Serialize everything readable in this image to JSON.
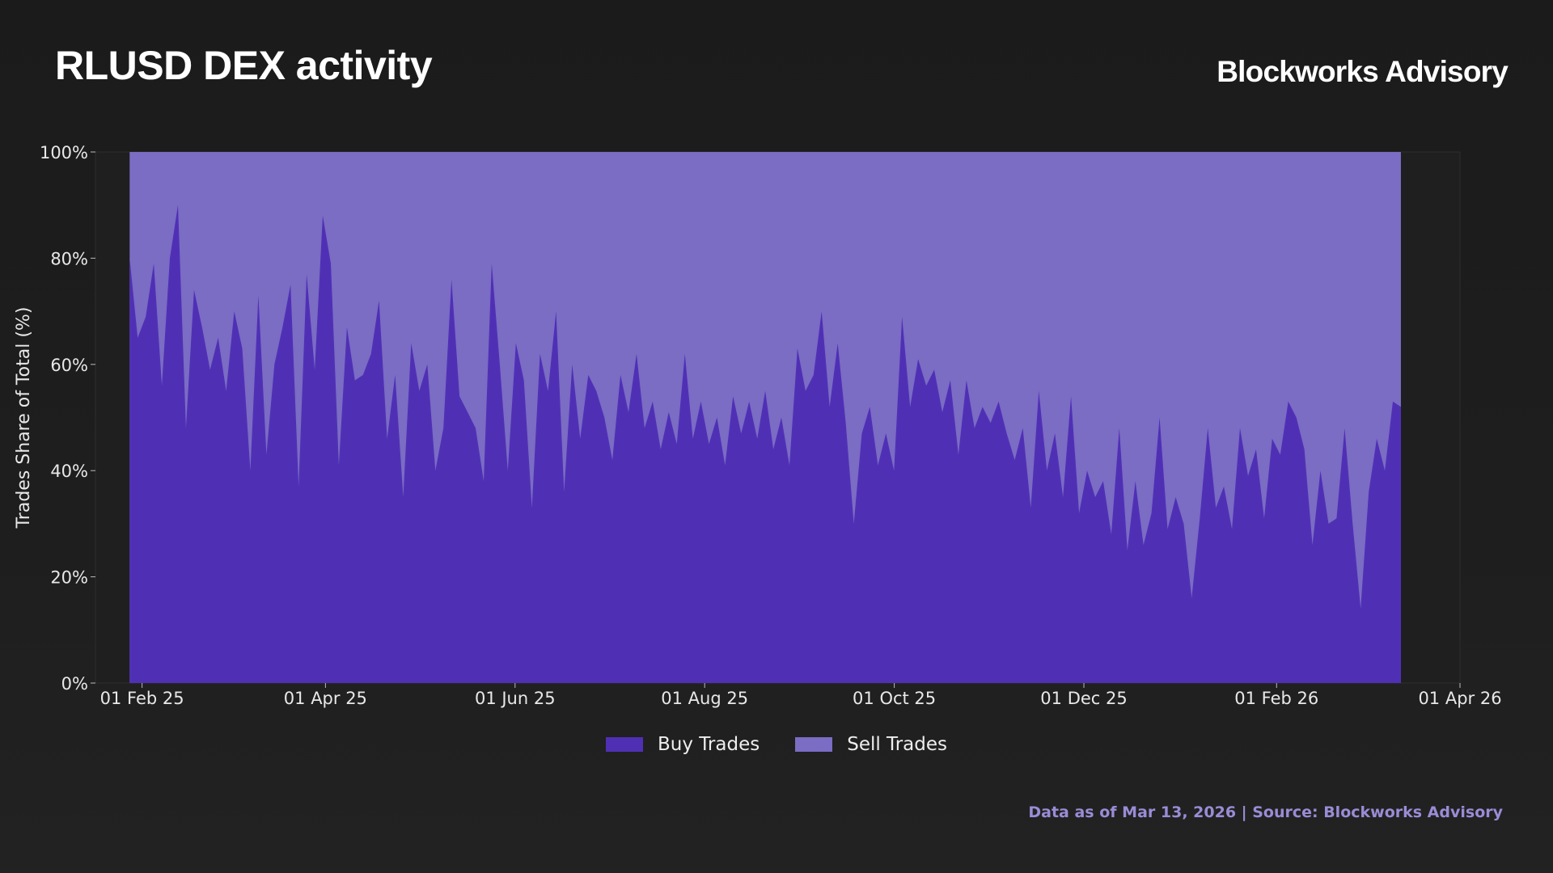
{
  "header": {
    "title": "RLUSD DEX activity",
    "brand": "Blockworks Advisory"
  },
  "footer": {
    "note": "Data as of Mar 13, 2026 | Source: Blockworks Advisory"
  },
  "colors": {
    "buy": "#4f30b5",
    "sell": "#7b6cc4",
    "background": "#1c1c1c",
    "plot_background": "#1f1f1f",
    "axis_text": "#e8e8e8"
  },
  "chart_data": {
    "type": "area",
    "stacked": true,
    "normalized": true,
    "title": "RLUSD DEX activity",
    "xlabel": "",
    "ylabel": "Trades Share of Total (%)",
    "ylim": [
      0,
      100
    ],
    "xlim": [
      "2025-01-17",
      "2026-04-01"
    ],
    "x_start": "2025-01-28",
    "x_end": "2026-03-13",
    "x_ticks": [
      "01 Feb 25",
      "01 Apr 25",
      "01 Jun 25",
      "01 Aug 25",
      "01 Oct 25",
      "01 Dec 25",
      "01 Feb 26",
      "01 Apr 26"
    ],
    "y_ticks": [
      "0%",
      "20%",
      "40%",
      "60%",
      "80%",
      "100%"
    ],
    "grid": false,
    "legend_position": "bottom-center",
    "series": [
      {
        "name": "Buy Trades",
        "values_note": "every 4th day",
        "values": [
          80,
          65,
          69,
          79,
          56,
          80,
          90,
          48,
          74,
          67,
          59,
          65,
          55,
          70,
          63,
          40,
          73,
          43,
          60,
          67,
          75,
          37,
          77,
          59,
          88,
          79,
          41,
          67,
          57,
          58,
          62,
          72,
          46,
          58,
          35,
          64,
          55,
          60,
          40,
          48,
          76,
          54,
          51,
          48,
          38,
          79,
          60,
          40,
          64,
          57,
          33,
          62,
          55,
          70,
          36,
          60,
          46,
          58,
          55,
          50,
          42,
          58,
          51,
          62,
          48,
          53,
          44,
          51,
          45,
          62,
          46,
          53,
          45,
          50,
          41,
          54,
          47,
          53,
          46,
          55,
          44,
          50,
          41,
          63,
          55,
          58,
          70,
          52,
          64,
          49,
          30,
          47,
          52,
          41,
          47,
          40,
          69,
          52,
          61,
          56,
          59,
          51,
          57,
          43,
          57,
          48,
          52,
          49,
          53,
          47,
          42,
          48,
          33,
          55,
          40,
          47,
          35,
          54,
          32,
          40,
          35,
          38,
          28,
          48,
          25,
          38,
          26,
          32,
          50,
          29,
          35,
          30,
          16,
          31,
          48,
          33,
          37,
          29,
          48,
          39,
          44,
          31,
          46,
          43,
          53,
          50,
          44,
          26,
          40,
          30,
          31,
          48,
          30,
          14,
          36,
          46,
          40,
          53,
          52
        ]
      },
      {
        "name": "Sell Trades",
        "values_note": "complement of Buy Trades to 100%"
      }
    ]
  },
  "legend": {
    "items": [
      {
        "label": "Buy Trades",
        "color": "#4f30b5"
      },
      {
        "label": "Sell Trades",
        "color": "#7b6cc4"
      }
    ]
  }
}
